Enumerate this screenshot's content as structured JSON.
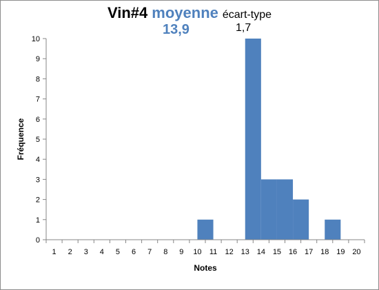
{
  "title": {
    "main": "Vin#4",
    "mean_label": "moyenne",
    "sd_label": "écart-type",
    "mean_value": "13,9",
    "sd_value": "1,7"
  },
  "colors": {
    "bar": "#4f81bd",
    "accent": "#4f81bd"
  },
  "chart_data": {
    "type": "bar",
    "title": "Vin#4 moyenne écart-type",
    "xlabel": "Notes",
    "ylabel": "Fréquence",
    "categories": [
      "1",
      "2",
      "3",
      "4",
      "5",
      "6",
      "7",
      "8",
      "9",
      "10",
      "11",
      "12",
      "13",
      "14",
      "15",
      "16",
      "17",
      "18",
      "19",
      "20"
    ],
    "values": [
      0,
      0,
      0,
      0,
      0,
      0,
      0,
      0,
      0,
      1,
      0,
      0,
      10,
      3,
      3,
      2,
      0,
      1,
      0,
      0
    ],
    "ylim": [
      0,
      10
    ],
    "yticks": [
      0,
      1,
      2,
      3,
      4,
      5,
      6,
      7,
      8,
      9,
      10
    ],
    "grid": false,
    "legend": "none"
  }
}
